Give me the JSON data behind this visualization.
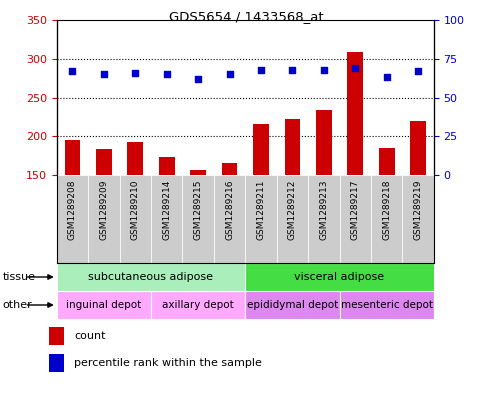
{
  "title": "GDS5654 / 1433568_at",
  "samples": [
    "GSM1289208",
    "GSM1289209",
    "GSM1289210",
    "GSM1289214",
    "GSM1289215",
    "GSM1289216",
    "GSM1289211",
    "GSM1289212",
    "GSM1289213",
    "GSM1289217",
    "GSM1289218",
    "GSM1289219"
  ],
  "counts": [
    195,
    183,
    193,
    173,
    157,
    165,
    216,
    222,
    234,
    309,
    185,
    220
  ],
  "percentiles": [
    67,
    65,
    66,
    65,
    62,
    65,
    68,
    68,
    68,
    69,
    63,
    67
  ],
  "ylim_left": [
    150,
    350
  ],
  "ylim_right": [
    0,
    100
  ],
  "yticks_left": [
    150,
    200,
    250,
    300,
    350
  ],
  "yticks_right": [
    0,
    25,
    50,
    75,
    100
  ],
  "bar_color": "#cc0000",
  "dot_color": "#0000cc",
  "tissue_groups": [
    {
      "label": "subcutaneous adipose",
      "start": 0,
      "end": 6,
      "color": "#aaeebb"
    },
    {
      "label": "visceral adipose",
      "start": 6,
      "end": 12,
      "color": "#44dd44"
    }
  ],
  "other_groups": [
    {
      "label": "inguinal depot",
      "start": 0,
      "end": 3,
      "color": "#ffaaff"
    },
    {
      "label": "axillary depot",
      "start": 3,
      "end": 6,
      "color": "#ffaaff"
    },
    {
      "label": "epididymal depot",
      "start": 6,
      "end": 9,
      "color": "#dd88ee"
    },
    {
      "label": "mesenteric depot",
      "start": 9,
      "end": 12,
      "color": "#dd88ee"
    }
  ],
  "legend_count_color": "#cc0000",
  "legend_dot_color": "#0000cc",
  "axis_color_left": "#cc0000",
  "axis_color_right": "#0000cc",
  "grid_yticks": [
    200,
    250,
    300
  ],
  "bar_bottom": 150,
  "label_row_color": "#cccccc",
  "label_fontsize": 6.5,
  "tissue_fontsize": 8,
  "other_fontsize": 7.5
}
